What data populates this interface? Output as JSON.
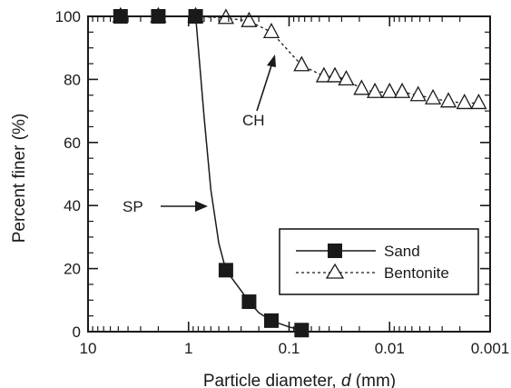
{
  "chart_data": {
    "type": "line",
    "xlabel_main": "Particle diameter, ",
    "xlabel_var": "d",
    "xlabel_unit": " (mm)",
    "ylabel": "Percent finer (%)",
    "x_scale": "log",
    "x_reversed": true,
    "xlim": [
      10,
      0.001
    ],
    "ylim": [
      0,
      100
    ],
    "x_ticks": [
      {
        "value": 10,
        "label": "10"
      },
      {
        "value": 1,
        "label": "1"
      },
      {
        "value": 0.1,
        "label": "0.1"
      },
      {
        "value": 0.01,
        "label": "0.01"
      },
      {
        "value": 0.001,
        "label": "0.001"
      }
    ],
    "y_ticks": [
      {
        "value": 0,
        "label": "0"
      },
      {
        "value": 20,
        "label": "20"
      },
      {
        "value": 40,
        "label": "40"
      },
      {
        "value": 60,
        "label": "60"
      },
      {
        "value": 80,
        "label": "80"
      },
      {
        "value": 100,
        "label": "100"
      }
    ],
    "grid": false,
    "legend_position": "bottom-right",
    "series": [
      {
        "name": "Sand",
        "marker": "filled-square",
        "line": "solid",
        "x": [
          4.75,
          2.0,
          0.85,
          0.425,
          0.25,
          0.15,
          0.075
        ],
        "y": [
          100,
          100,
          100,
          19.5,
          9.5,
          3.5,
          0.5
        ],
        "curve_x": [
          4.75,
          2.0,
          0.85,
          0.8,
          0.7,
          0.6,
          0.5,
          0.425,
          0.3,
          0.25,
          0.2,
          0.15,
          0.1,
          0.075
        ],
        "curve_y": [
          100,
          100,
          100,
          90,
          68,
          45,
          28,
          19.5,
          13,
          9.5,
          6,
          3.5,
          1.5,
          0.5
        ]
      },
      {
        "name": "Bentonite",
        "marker": "open-triangle",
        "line": "dashed",
        "x": [
          4.75,
          2.0,
          0.85,
          0.425,
          0.25,
          0.15,
          0.075,
          0.045,
          0.035,
          0.027,
          0.019,
          0.014,
          0.01,
          0.0075,
          0.0052,
          0.0037,
          0.0026,
          0.0018,
          0.0013
        ],
        "y": [
          100,
          100,
          100,
          99.5,
          98.5,
          95,
          84.5,
          81,
          81,
          80,
          77,
          76,
          76,
          76,
          75,
          74,
          73,
          72.5,
          72.5
        ]
      }
    ],
    "annotations": [
      {
        "text": "CH",
        "target_x": 0.13,
        "target_y": 88
      },
      {
        "text": "SP",
        "target_x": 0.72,
        "target_y": 40
      }
    ]
  }
}
